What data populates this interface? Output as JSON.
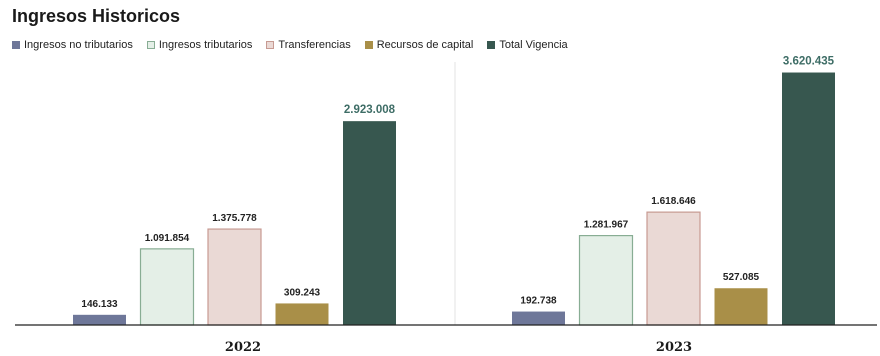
{
  "chart_data": {
    "type": "bar",
    "title": "Ingresos Historicos",
    "categories": [
      "2022",
      "2023"
    ],
    "series": [
      {
        "name": "Ingresos no tributarios",
        "values": [
          146133,
          192738
        ],
        "labels": [
          "146.133",
          "192.738"
        ],
        "color": "#6e7799"
      },
      {
        "name": "Ingresos tributarios",
        "values": [
          1091854,
          1281967
        ],
        "labels": [
          "1.091.854",
          "1.281.967"
        ],
        "color": "#e4efe7",
        "stroke": "#88ad94"
      },
      {
        "name": "Transferencias",
        "values": [
          1375778,
          1618646
        ],
        "labels": [
          "1.375.778",
          "1.618.646"
        ],
        "color": "#ead9d5",
        "stroke": "#c79a92"
      },
      {
        "name": "Recursos de capital",
        "values": [
          309243,
          527085
        ],
        "labels": [
          "309.243",
          "527.085"
        ],
        "color": "#a98f48"
      },
      {
        "name": "Total Vigencia",
        "values": [
          2923008,
          3620435
        ],
        "labels": [
          "2.923.008",
          "3.620.435"
        ],
        "color": "#37574f"
      }
    ],
    "ylim": [
      0,
      3800000
    ],
    "total_label_color": "#3e6d66",
    "grid": false,
    "legend_position": "top-left"
  }
}
